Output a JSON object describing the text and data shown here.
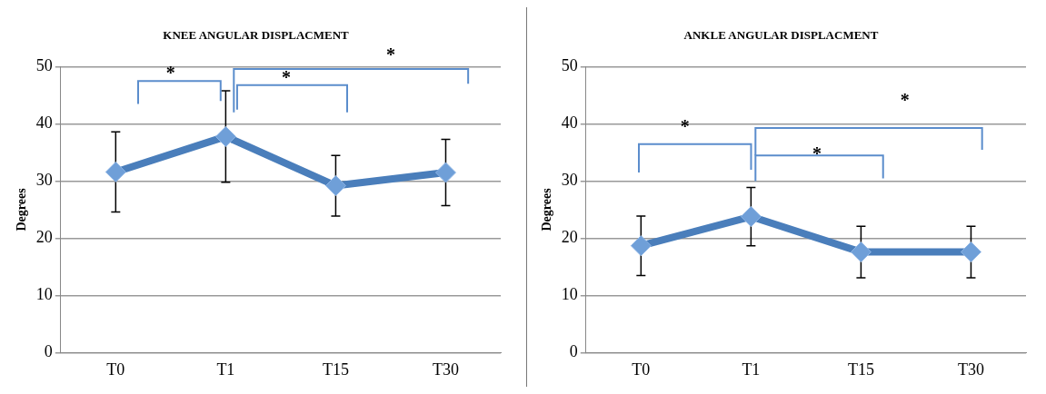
{
  "chart_data": [
    {
      "type": "line",
      "title": "KNEE ANGULAR DISPLACMENT",
      "ylabel": "Degrees",
      "categories": [
        "T0",
        "T1",
        "T15",
        "T30"
      ],
      "series": [
        {
          "color": "#4a7ebb",
          "values": [
            31.6,
            37.8,
            29.2,
            31.5
          ],
          "errors": [
            7,
            8,
            5.3,
            5.8
          ]
        }
      ],
      "ylim": [
        0,
        50
      ],
      "yticks": [
        0,
        10,
        20,
        30,
        40,
        50
      ],
      "grid": "y",
      "legend": false,
      "marker": "diamond",
      "line_style": "solid",
      "annotations": [
        "*",
        "*",
        "*"
      ]
    },
    {
      "type": "line",
      "title": "ANKLE ANGULAR DISPLACMENT",
      "ylabel": "Degrees",
      "categories": [
        "T0",
        "T1",
        "T15",
        "T30"
      ],
      "series": [
        {
          "color": "#4a7ebb",
          "values": [
            18.7,
            23.8,
            17.6,
            17.6
          ],
          "errors": [
            5.2,
            5.1,
            4.5,
            4.5
          ]
        }
      ],
      "ylim": [
        0,
        50
      ],
      "yticks": [
        0,
        10,
        20,
        30,
        40,
        50
      ],
      "grid": "y",
      "legend": false,
      "marker": "diamond",
      "line_style": "solid",
      "annotations": [
        "*",
        "*",
        "*"
      ]
    }
  ]
}
